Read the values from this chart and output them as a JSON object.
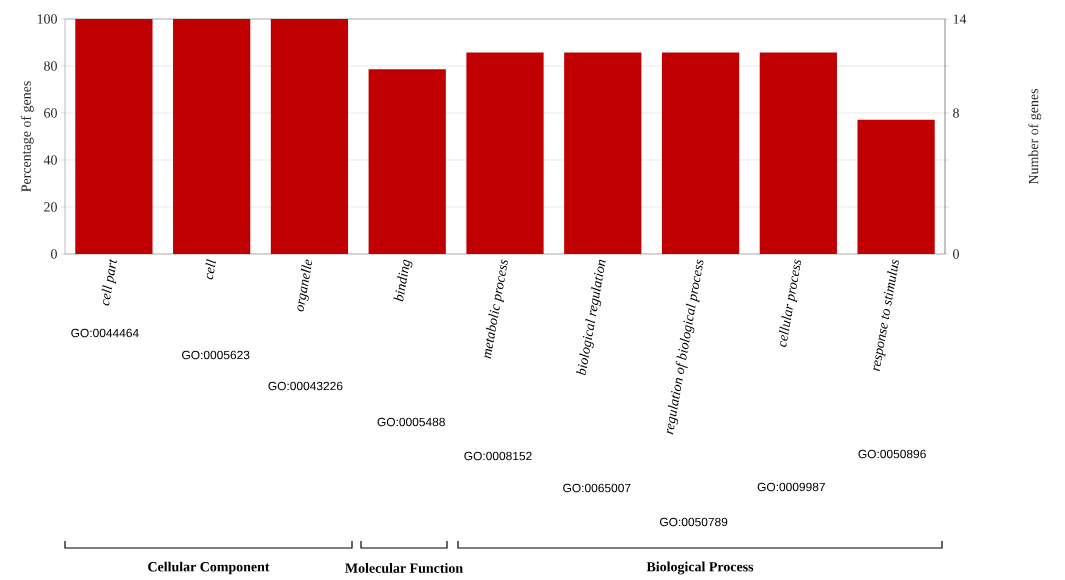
{
  "chart_data": {
    "type": "bar",
    "categories": [
      "cell part",
      "cell",
      "organelle",
      "binding",
      "metabolic process",
      "biological regulation",
      "regulation of biological process",
      "cellular process",
      "response to stimulus"
    ],
    "values": [
      100,
      100,
      100,
      78.6,
      85.7,
      85.7,
      85.7,
      85.7,
      57.1
    ],
    "color": "#c00000",
    "ylabel": "Percentage of genes",
    "y2label": "Number of genes",
    "ylim": [
      0,
      100
    ],
    "yticks": [
      0,
      20,
      40,
      60,
      80,
      100
    ],
    "y2lim": [
      0,
      14
    ],
    "y2ticks": [
      0,
      {
        "value": 2.8,
        "label": null
      },
      {
        "value": 5.6,
        "label": null
      },
      {
        "value": 8.4,
        "label": "8"
      },
      {
        "value": 11.2,
        "label": null
      },
      14
    ],
    "grid": "y",
    "annotations": [
      "GO:0044464",
      "GO:0005623",
      "GO:00043226",
      "GO:0005488",
      "GO:0008152",
      "GO:0065007",
      "GO:0050789",
      "GO:0009987",
      "GO:0050896",
      "Cellular Component",
      "Molecular Function",
      "Biological Process"
    ]
  }
}
